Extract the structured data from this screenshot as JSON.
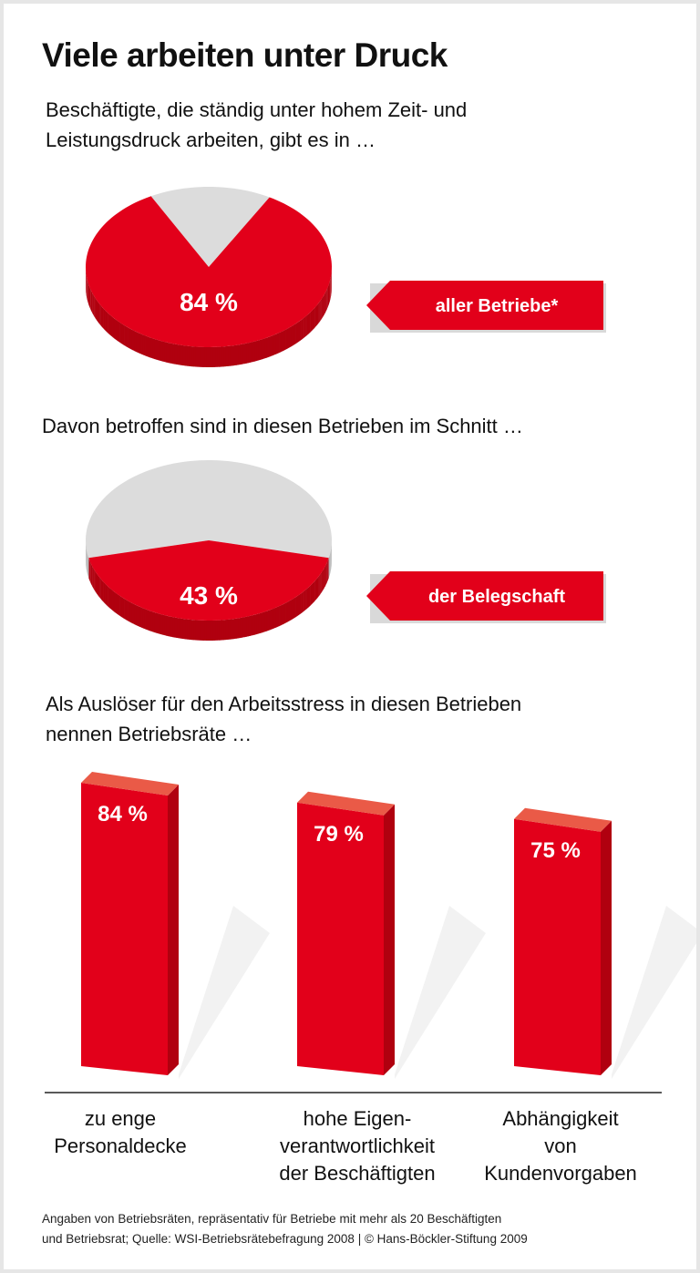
{
  "title": "Viele arbeiten unter Druck",
  "intro": [
    "Beschäftigte, die ständig unter hohem Zeit- und",
    "Leistungsdruck arbeiten, gibt es in …"
  ],
  "section2": "Davon betroffen sind in diesen Betrieben im Schnitt …",
  "section3": [
    "Als Auslöser für den Arbeitsstress in diesen Betrieben",
    "nennen Betriebsräte …"
  ],
  "footer": [
    "Angaben von Betriebsräten, repräsentativ für Betriebe mit mehr als 20 Beschäftigten",
    "und Betriebsrat; Quelle: WSI-Betriebsrätebefragung 2008 | © Hans-Böckler-Stiftung 2009"
  ],
  "colors": {
    "red": "#e2001a",
    "red_dark": "#b0000f",
    "red_top": "#ea5a47",
    "gray": "#dcdcdc"
  },
  "chart_data": [
    {
      "type": "pie",
      "values": [
        84,
        16
      ],
      "label": "84 %",
      "tag": "aller Betriebe*"
    },
    {
      "type": "pie",
      "values": [
        43,
        57
      ],
      "label": "43 %",
      "tag": "der Belegschaft"
    },
    {
      "type": "bar",
      "categories": [
        [
          "zu enge",
          "Personaldecke"
        ],
        [
          "hohe Eigen-",
          "verantwortlichkeit",
          "der Beschäftigten"
        ],
        [
          "Abhängigkeit",
          "von",
          "Kundenvorgaben"
        ]
      ],
      "values": [
        84,
        79,
        75
      ],
      "labels": [
        "84 %",
        "79 %",
        "75 %"
      ]
    }
  ]
}
